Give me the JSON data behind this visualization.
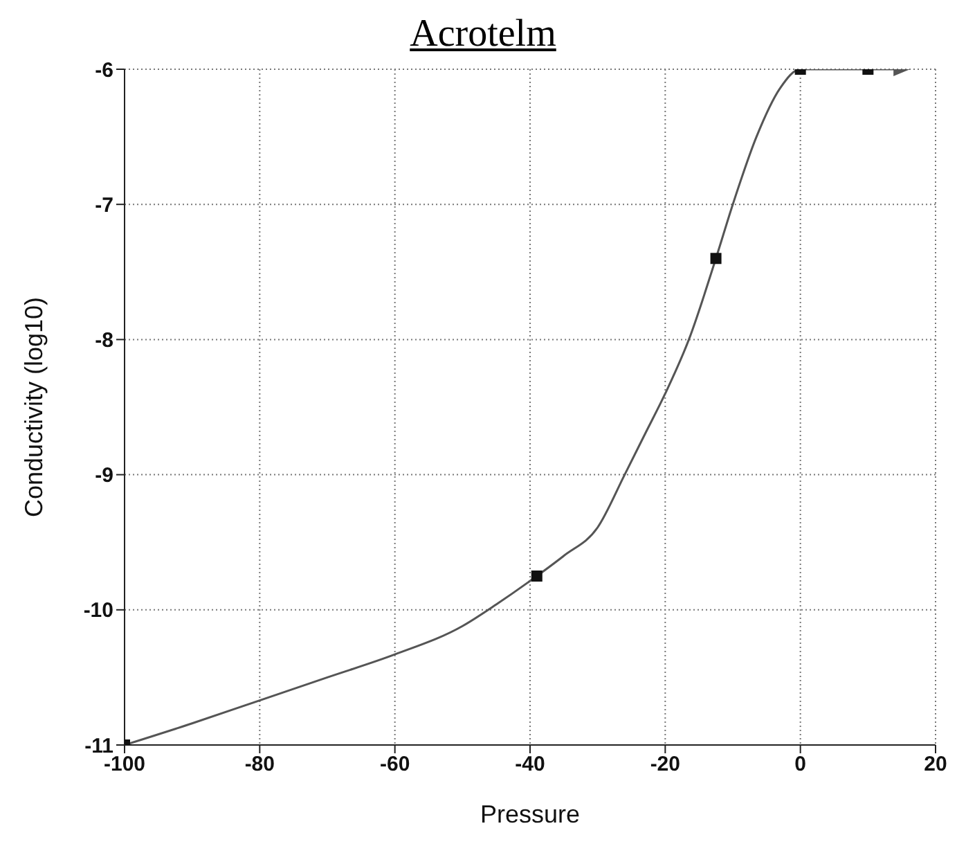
{
  "chart_data": {
    "type": "line",
    "title": "Acrotelm",
    "xlabel": "Pressure",
    "ylabel": "Conductivity (log10)",
    "xlim": [
      -100,
      20
    ],
    "xticks": [
      -100,
      -80,
      -60,
      -40,
      -20,
      0,
      20
    ],
    "ylim": [
      -11,
      -6
    ],
    "yticks": [
      -11,
      -10,
      -9,
      -8,
      -7,
      -6
    ],
    "grid": true,
    "series": [
      {
        "color": "#555555",
        "marker": "none",
        "x": [
          -100,
          -90,
          -80,
          -70,
          -60,
          -50,
          -45,
          -39,
          -35,
          -30,
          -26,
          -23,
          -20,
          -16.5,
          -12.5,
          -10,
          -6.5,
          -3,
          0,
          10,
          15
        ],
        "values": [
          -11,
          -10.84,
          -10.67,
          -10.5,
          -10.33,
          -10.12,
          -9.96,
          -9.75,
          -9.6,
          -9.39,
          -9,
          -8.7,
          -8.4,
          -8,
          -7.4,
          -7,
          -6.5,
          -6.14,
          -6,
          -6,
          -6
        ]
      },
      {
        "type": "scatter",
        "color": "#111111",
        "marker": "square",
        "x": [
          -100,
          -39,
          -12.5,
          0,
          10
        ],
        "values": [
          -11,
          -9.75,
          -7.4,
          -6,
          -6
        ]
      }
    ]
  }
}
